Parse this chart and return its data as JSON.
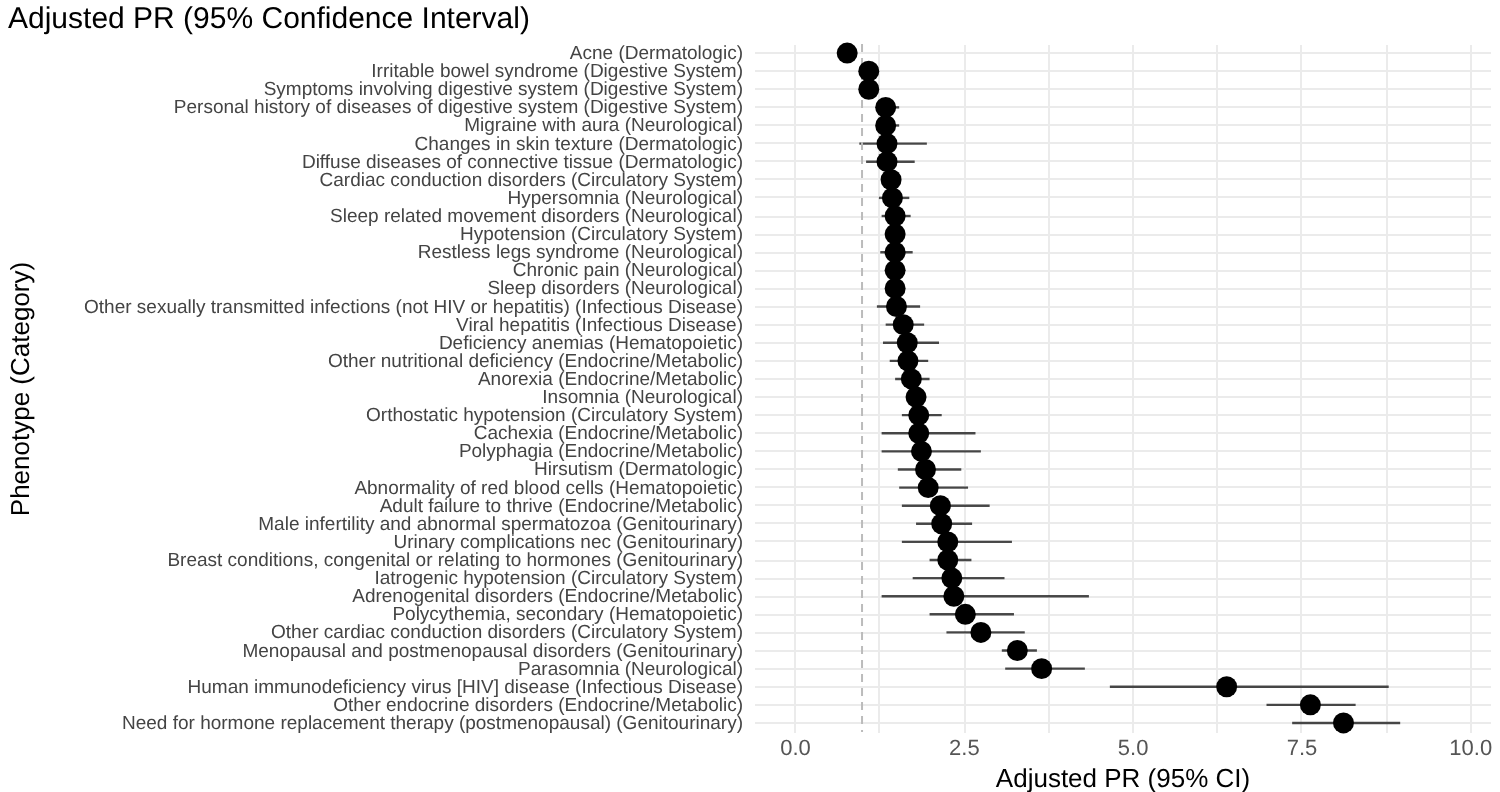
{
  "chart_data": {
    "type": "scatter",
    "title": "Adjusted PR (95% Confidence Interval)",
    "xlabel": "Adjusted PR (95% CI)",
    "ylabel": "Phenotype (Category)",
    "orientation": "horizontal",
    "marker": "circle",
    "grid": true,
    "categories": [
      "Acne (Dermatologic)",
      "Irritable bowel syndrome (Digestive System)",
      "Symptoms involving digestive system (Digestive System)",
      "Personal history of diseases of digestive system (Digestive System)",
      "Migraine with aura (Neurological)",
      "Changes in skin texture (Dermatologic)",
      "Diffuse diseases of connective tissue (Dermatologic)",
      "Cardiac conduction disorders (Circulatory System)",
      "Hypersomnia (Neurological)",
      "Sleep related movement disorders (Neurological)",
      "Hypotension (Circulatory System)",
      "Restless legs syndrome (Neurological)",
      "Chronic pain (Neurological)",
      "Sleep disorders (Neurological)",
      "Other sexually transmitted infections (not HIV or hepatitis) (Infectious Disease)",
      "Viral hepatitis (Infectious Disease)",
      "Deficiency anemias (Hematopoietic)",
      "Other nutritional deficiency (Endocrine/Metabolic)",
      "Anorexia (Endocrine/Metabolic)",
      "Insomnia (Neurological)",
      "Orthostatic hypotension (Circulatory System)",
      "Cachexia (Endocrine/Metabolic)",
      "Polyphagia (Endocrine/Metabolic)",
      "Hirsutism (Dermatologic)",
      "Abnormality of red blood cells (Hematopoietic)",
      "Adult failure to thrive (Endocrine/Metabolic)",
      "Male infertility and abnormal spermatozoa (Genitourinary)",
      "Urinary complications nec (Genitourinary)",
      "Breast conditions, congenital or relating to hormones (Genitourinary)",
      "Iatrogenic hypotension (Circulatory System)",
      "Adrenogenital disorders (Endocrine/Metabolic)",
      "Polycythemia, secondary (Hematopoietic)",
      "Other cardiac conduction disorders (Circulatory System)",
      "Menopausal and postmenopausal disorders (Genitourinary)",
      "Parasomnia (Neurological)",
      "Human immunodeficiency virus [HIV] disease (Infectious Disease)",
      "Other endocrine disorders (Endocrine/Metabolic)",
      "Need for hormone replacement therapy (postmenopausal) (Genitourinary)"
    ],
    "series": [
      {
        "color": "#000000",
        "values": [
          0.78,
          1.1,
          1.1,
          1.35,
          1.35,
          1.37,
          1.37,
          1.43,
          1.45,
          1.49,
          1.49,
          1.49,
          1.49,
          1.49,
          1.51,
          1.61,
          1.67,
          1.68,
          1.73,
          1.8,
          1.84,
          1.84,
          1.88,
          1.94,
          1.98,
          2.16,
          2.18,
          2.27,
          2.27,
          2.33,
          2.36,
          2.53,
          2.76,
          3.3,
          3.66,
          6.4,
          7.64,
          8.13
        ],
        "errors": [
          null,
          null,
          null,
          [
            1.23,
            1.55
          ],
          [
            1.23,
            1.55
          ],
          [
            0.96,
            1.96
          ],
          [
            1.06,
            1.78
          ],
          null,
          [
            1.25,
            1.7
          ],
          [
            1.29,
            1.72
          ],
          null,
          [
            1.27,
            1.75
          ],
          null,
          null,
          [
            1.22,
            1.86
          ],
          [
            1.35,
            1.92
          ],
          [
            1.31,
            2.14
          ],
          [
            1.41,
            1.98
          ],
          [
            1.49,
            2.0
          ],
          null,
          [
            1.59,
            2.18
          ],
          [
            1.29,
            2.68
          ],
          [
            1.29,
            2.76
          ],
          [
            1.53,
            2.47
          ],
          [
            1.55,
            2.57
          ],
          [
            1.59,
            2.89
          ],
          [
            1.8,
            2.63
          ],
          [
            1.59,
            3.22
          ],
          [
            2.0,
            2.62
          ],
          [
            1.75,
            3.11
          ],
          [
            1.29,
            4.36
          ],
          [
            2.0,
            3.25
          ],
          [
            2.25,
            3.41
          ],
          [
            3.07,
            3.59
          ],
          [
            3.12,
            4.3
          ],
          [
            4.67,
            8.8
          ],
          [
            6.99,
            8.31
          ],
          [
            7.37,
            8.97
          ]
        ]
      }
    ],
    "xlim": [
      -0.6,
      10.3
    ],
    "xticks": [
      {
        "value": 0,
        "label": "0.0"
      },
      {
        "value": 1.25,
        "label": null
      },
      {
        "value": 2.5,
        "label": "2.5"
      },
      {
        "value": 3.75,
        "label": null
      },
      {
        "value": 5,
        "label": "5.0"
      },
      {
        "value": 6.25,
        "label": null
      },
      {
        "value": 7.5,
        "label": "7.5"
      },
      {
        "value": 8.75,
        "label": null
      },
      {
        "value": 10,
        "label": "10.0"
      }
    ],
    "ref_lines": [
      {
        "axis": "x",
        "value": 1,
        "color": "#bbbbbb",
        "line_style": "dashed"
      }
    ]
  }
}
